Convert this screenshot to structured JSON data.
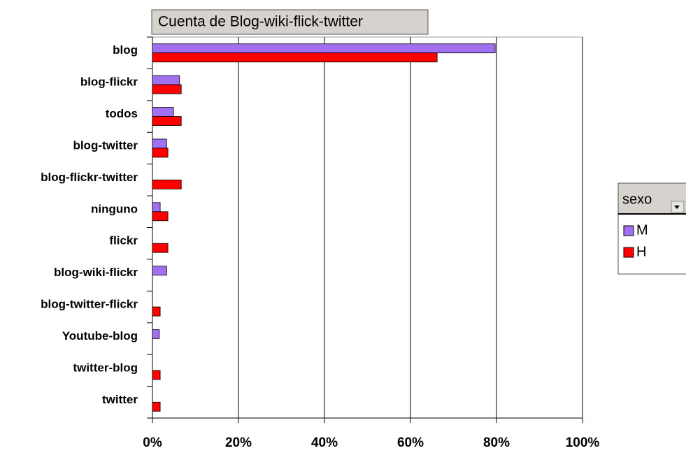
{
  "chart_data": {
    "type": "hbar",
    "title": "Cuenta de Blog-wiki-flick-twitter",
    "categories": [
      "blog",
      "blog-flickr",
      "todos",
      "blog-twitter",
      "blog-flickr-twitter",
      "ninguno",
      "flickr",
      "blog-wiki-flickr",
      "blog-twitter-flickr",
      "Youtube-blog",
      "twitter-blog",
      "twitter"
    ],
    "series": [
      {
        "name": "M",
        "color": "#a070f0",
        "values": [
          79.7,
          6.3,
          4.9,
          3.3,
          null,
          1.8,
          null,
          3.3,
          null,
          1.6,
          null,
          null
        ]
      },
      {
        "name": "H",
        "color": "#ff0000",
        "values": [
          66.2,
          6.7,
          6.7,
          3.6,
          6.7,
          3.6,
          3.6,
          null,
          1.8,
          null,
          1.8,
          1.8
        ]
      }
    ],
    "legend_title": "sexo",
    "xlim": [
      0,
      100
    ],
    "xticks": [
      {
        "value": 0,
        "label": "0%"
      },
      {
        "value": 20,
        "label": "20%"
      },
      {
        "value": 40,
        "label": "40%"
      },
      {
        "value": 60,
        "label": "60%"
      },
      {
        "value": 80,
        "label": "80%"
      },
      {
        "value": 100,
        "label": "100%"
      }
    ],
    "grid": true
  }
}
